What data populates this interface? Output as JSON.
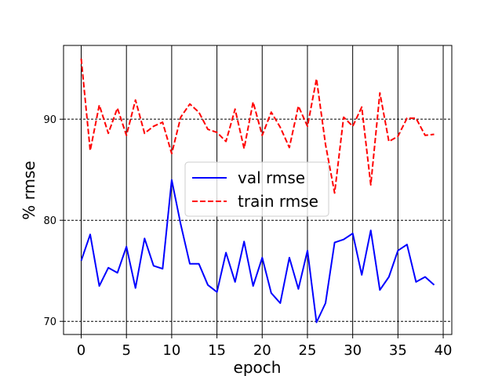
{
  "chart_data": {
    "type": "line",
    "xlabel": "epoch",
    "ylabel": "% rmse",
    "xlim": [
      -1.95,
      40.95
    ],
    "ylim": [
      68.7,
      97.3
    ],
    "xticks": [
      0,
      5,
      10,
      15,
      20,
      25,
      30,
      35,
      40
    ],
    "yticks": [
      70,
      80,
      90
    ],
    "grid": {
      "x": "solid",
      "y": "dashed"
    },
    "legend_position": "center",
    "x": [
      0,
      1,
      2,
      3,
      4,
      5,
      6,
      7,
      8,
      9,
      10,
      11,
      12,
      13,
      14,
      15,
      16,
      17,
      18,
      19,
      20,
      21,
      22,
      23,
      24,
      25,
      26,
      27,
      28,
      29,
      30,
      31,
      32,
      33,
      34,
      35,
      36,
      37,
      38,
      39
    ],
    "series": [
      {
        "name": "val rmse",
        "color": "#0000ff",
        "dash": "solid",
        "values": [
          76.0,
          78.6,
          73.5,
          75.3,
          74.8,
          77.4,
          73.3,
          78.2,
          75.5,
          75.2,
          84.0,
          79.6,
          75.7,
          75.7,
          73.6,
          72.9,
          76.8,
          73.9,
          77.9,
          73.5,
          76.3,
          72.8,
          71.8,
          76.3,
          73.2,
          77.0,
          69.9,
          71.8,
          77.8,
          78.1,
          78.7,
          74.6,
          79.0,
          73.1,
          74.4,
          77.0,
          77.6,
          73.9,
          74.4,
          73.6
        ]
      },
      {
        "name": "train rmse",
        "color": "#ff0000",
        "dash": "dashed",
        "values": [
          96.0,
          86.9,
          91.4,
          88.6,
          91.1,
          88.4,
          91.9,
          88.6,
          89.3,
          89.7,
          86.6,
          90.2,
          91.5,
          90.7,
          89.0,
          88.7,
          87.8,
          91.0,
          87.1,
          91.7,
          88.4,
          90.7,
          89.2,
          87.2,
          91.3,
          89.3,
          94.0,
          87.5,
          82.7,
          90.2,
          89.3,
          91.2,
          83.5,
          92.6,
          87.8,
          88.3,
          90.1,
          90.1,
          88.4,
          88.5
        ]
      }
    ]
  }
}
